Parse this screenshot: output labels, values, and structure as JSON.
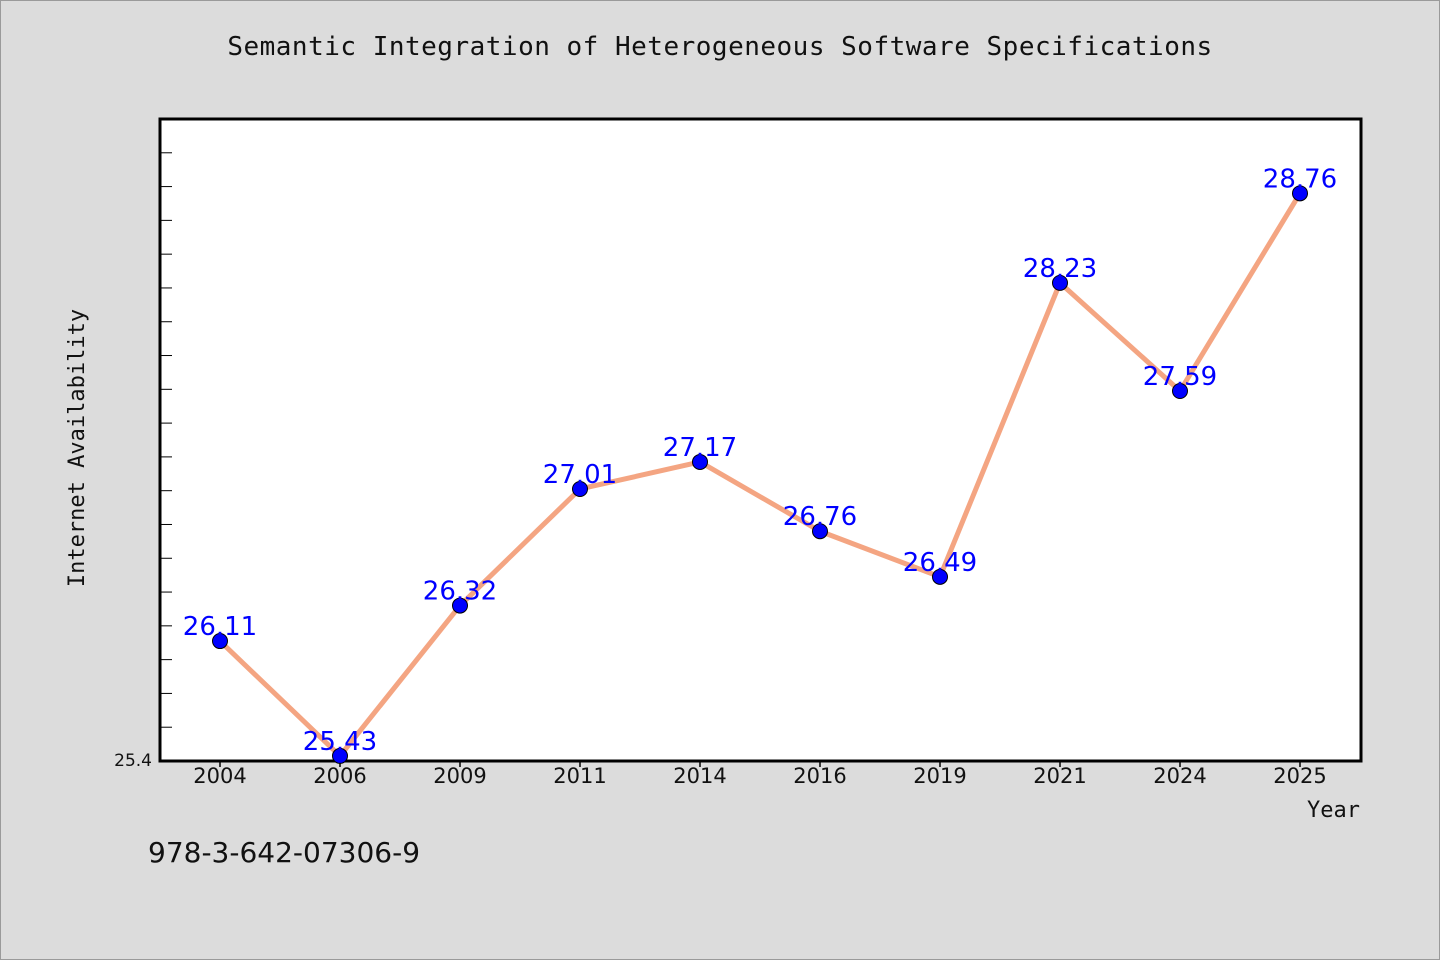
{
  "title": "Semantic Integration of Heterogeneous Software Specifications",
  "isbn": "978-3-642-07306-9",
  "chart_data": {
    "type": "line",
    "title": "Semantic Integration of Heterogeneous Software Specifications",
    "xlabel": "Year",
    "ylabel": "Internet Availability",
    "categories": [
      "2004",
      "2006",
      "2009",
      "2011",
      "2014",
      "2016",
      "2019",
      "2021",
      "2024",
      "2025"
    ],
    "series": [
      {
        "values": [
          26.11,
          25.43,
          26.32,
          27.01,
          27.17,
          26.76,
          26.49,
          28.23,
          27.59,
          28.76
        ],
        "data_labels": [
          "26.11",
          "25.43",
          "26.32",
          "27.01",
          "27.17",
          "26.76",
          "26.49",
          "28.23",
          "27.59",
          "28.76"
        ]
      }
    ],
    "ylim": [
      25.4,
      29.2
    ],
    "y_tick_label": "25.4",
    "grid": false,
    "colors": {
      "line": "#f4a582",
      "marker": "#0000ff",
      "data_label": "#0000ff"
    }
  }
}
